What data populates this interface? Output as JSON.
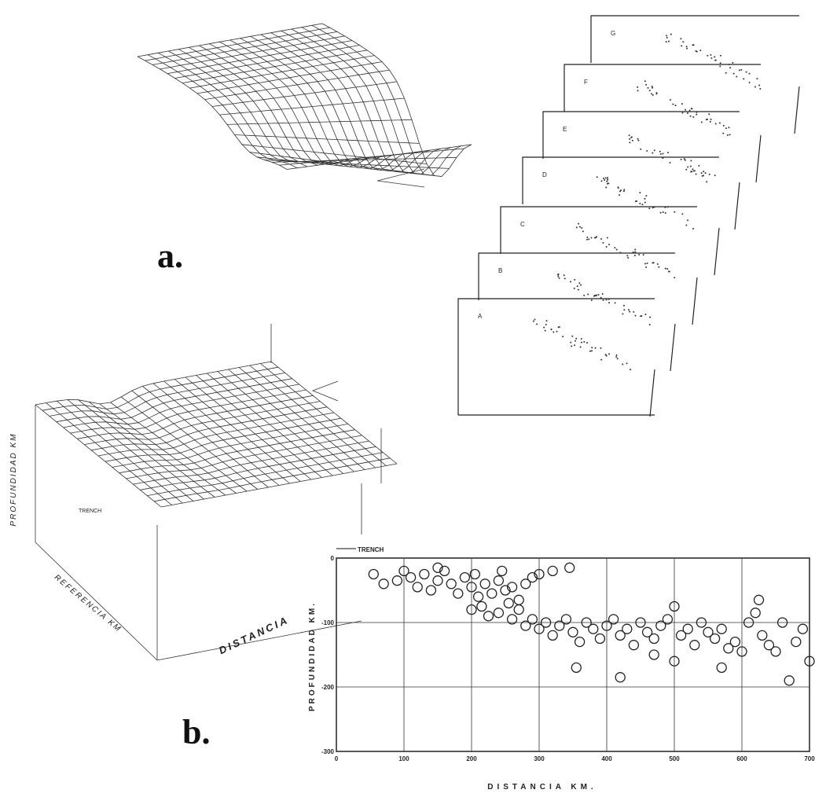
{
  "figure_labels": [
    "a.",
    "b."
  ],
  "sections": [
    "A",
    "B",
    "C",
    "D",
    "E",
    "F",
    "G"
  ],
  "surface_b": {
    "z_label": "PROFUNDIDAD KM",
    "x_label": "DISTANCIA",
    "y_label": "REFERENCIA KM",
    "trench": "TRENCH"
  },
  "chart_data": {
    "type": "scatter",
    "ylabel": "PROFUNDIDAD KM.",
    "xlabel": "DISTANCIA KM.",
    "annotation": "TRENCH",
    "xlim": [
      0,
      700
    ],
    "ylim": [
      -300,
      0
    ],
    "xticks": [
      0,
      100,
      200,
      300,
      400,
      500,
      600,
      700
    ],
    "yticks": [
      0,
      -100,
      -200,
      -300
    ],
    "grid": true,
    "color": "#222222",
    "x": [
      55,
      70,
      90,
      100,
      110,
      120,
      130,
      140,
      150,
      160,
      170,
      180,
      190,
      200,
      205,
      210,
      220,
      230,
      240,
      250,
      255,
      260,
      270,
      280,
      290,
      300,
      320,
      345,
      200,
      215,
      225,
      240,
      260,
      270,
      280,
      290,
      300,
      310,
      320,
      330,
      340,
      350,
      360,
      370,
      380,
      390,
      400,
      410,
      420,
      430,
      440,
      450,
      460,
      470,
      480,
      490,
      500,
      510,
      520,
      530,
      540,
      550,
      560,
      570,
      580,
      590,
      600,
      610,
      620,
      625,
      630,
      640,
      650,
      660,
      670,
      680,
      690,
      700,
      355,
      420,
      470,
      570,
      500,
      245,
      150
    ],
    "y": [
      -25,
      -40,
      -35,
      -20,
      -30,
      -45,
      -25,
      -50,
      -35,
      -20,
      -40,
      -55,
      -30,
      -45,
      -25,
      -60,
      -40,
      -55,
      -35,
      -50,
      -70,
      -45,
      -65,
      -40,
      -30,
      -25,
      -20,
      -15,
      -80,
      -75,
      -90,
      -85,
      -95,
      -80,
      -105,
      -95,
      -110,
      -100,
      -120,
      -105,
      -95,
      -115,
      -130,
      -100,
      -110,
      -125,
      -105,
      -95,
      -120,
      -110,
      -135,
      -100,
      -115,
      -125,
      -105,
      -95,
      -75,
      -120,
      -110,
      -135,
      -100,
      -115,
      -125,
      -110,
      -140,
      -130,
      -145,
      -100,
      -85,
      -65,
      -120,
      -135,
      -145,
      -100,
      -190,
      -130,
      -110,
      -160,
      -170,
      -185,
      -150,
      -170,
      -160,
      -20,
      -15
    ]
  }
}
